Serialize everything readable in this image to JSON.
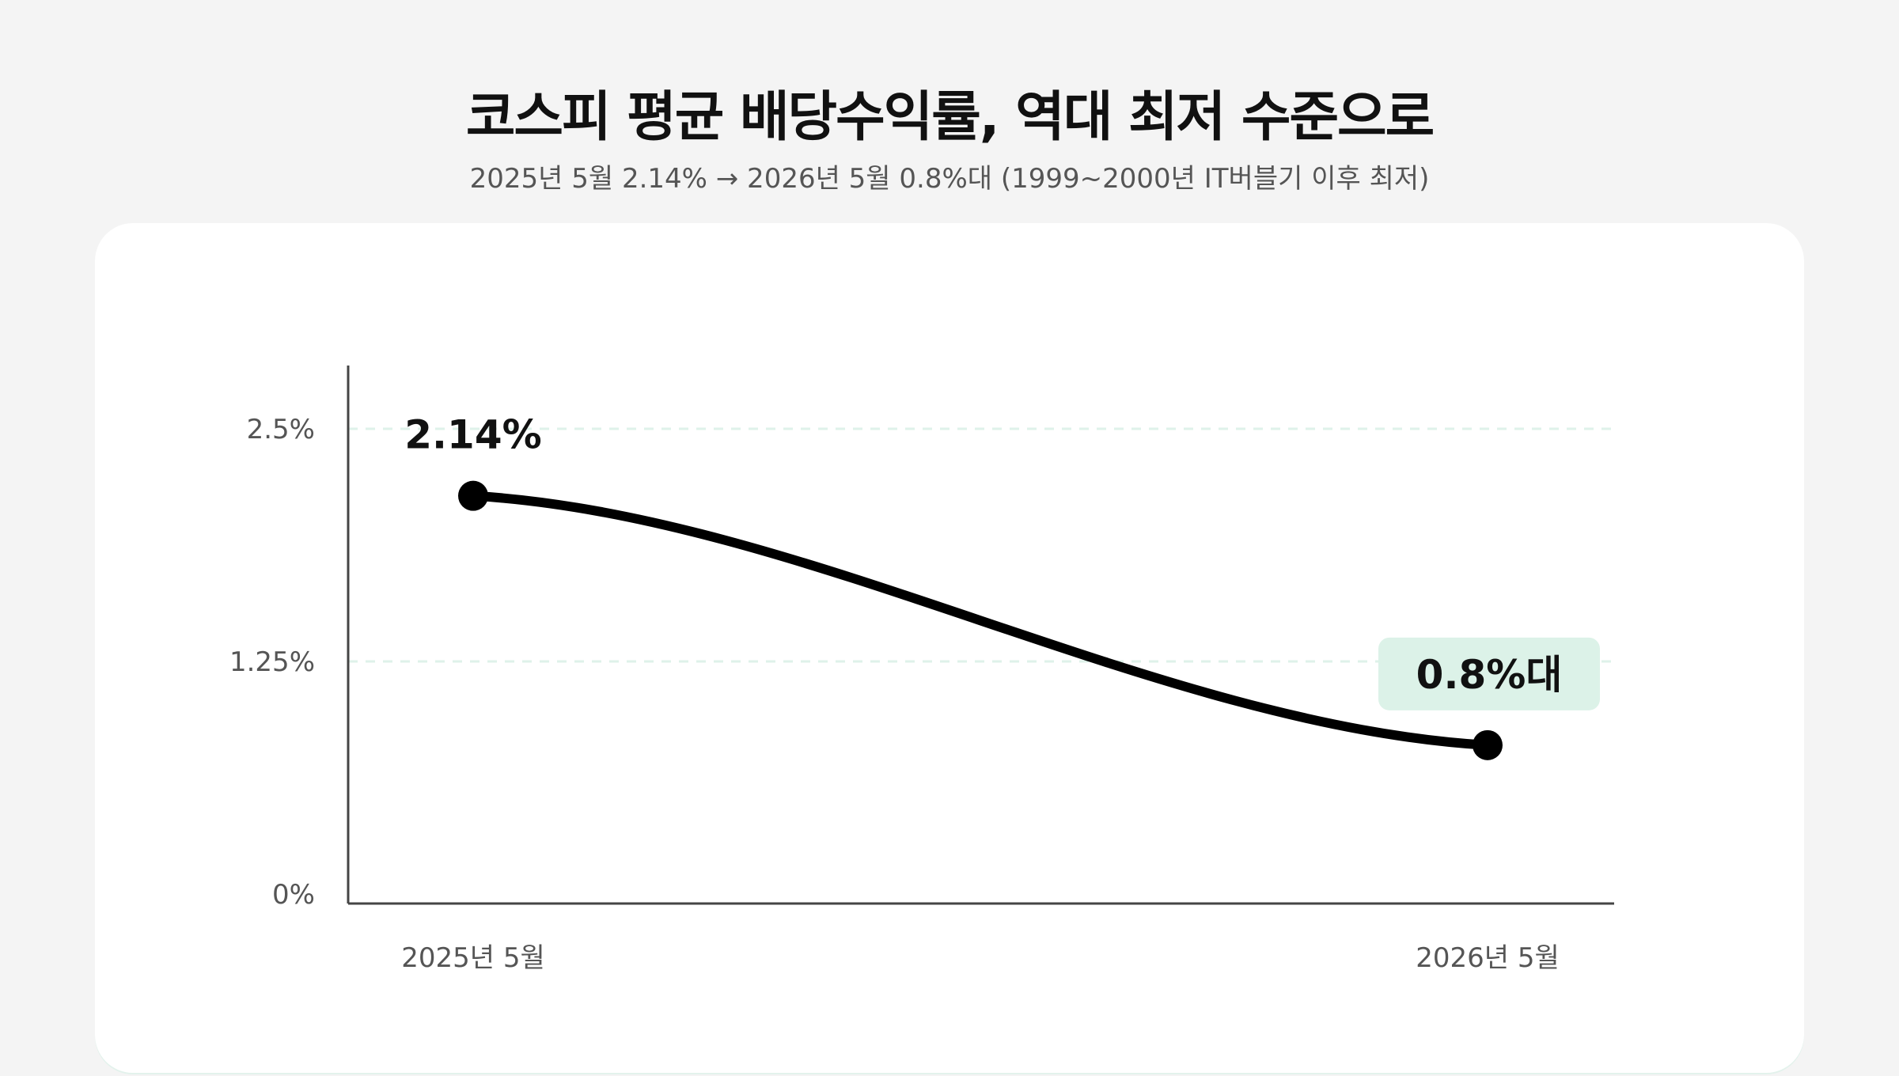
{
  "header": {
    "title": "코스피 평균 배당수익률, 역대 최저 수준으로",
    "subtitle": "2025년 5월 2.14% → 2026년 5월 0.8%대 (1999~2000년 IT버블기 이후 최저)"
  },
  "colors": {
    "line": "#000000",
    "grid": "#dff2ea",
    "highlight": "#dcf2e8",
    "axis": "#444444"
  },
  "chart_data": {
    "type": "line",
    "categories": [
      "2025년 5월",
      "2026년 5월"
    ],
    "values": [
      2.14,
      0.8
    ],
    "data_labels": [
      "2.14%",
      "0.8%대"
    ],
    "y_ticks": [
      {
        "value": 0,
        "label": "0%"
      },
      {
        "value": 1.25,
        "label": "1.25%"
      },
      {
        "value": 2.5,
        "label": "2.5%"
      }
    ],
    "ylim": [
      0,
      2.5
    ],
    "grid": true,
    "highlight_last": true
  }
}
